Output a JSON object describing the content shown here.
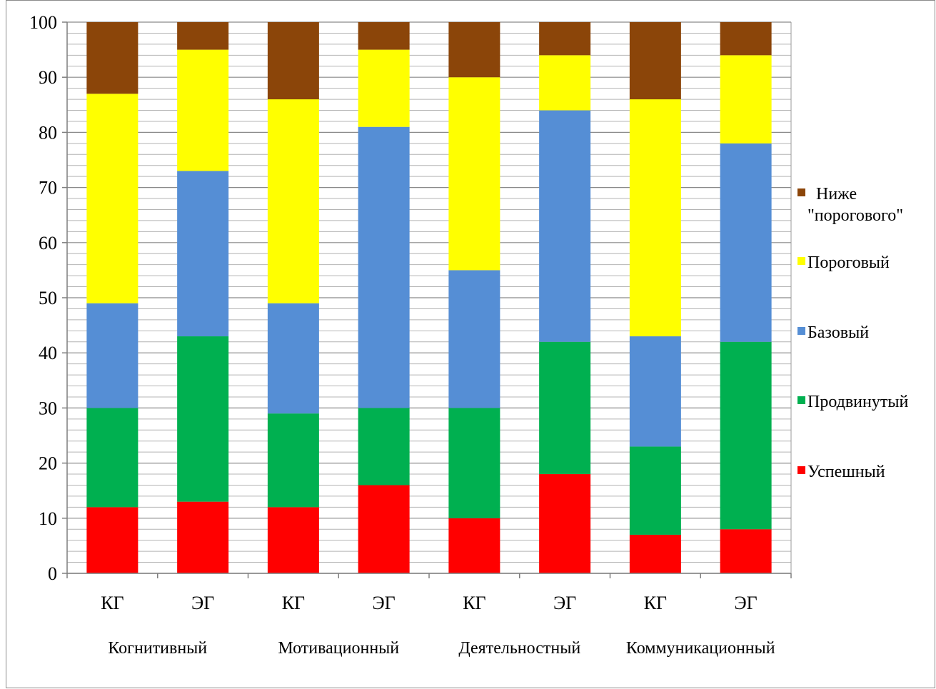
{
  "chart_data": {
    "type": "bar",
    "stacked": true,
    "categories": [
      "КГ",
      "ЭГ",
      "КГ",
      "ЭГ",
      "КГ",
      "ЭГ",
      "КГ",
      "ЭГ"
    ],
    "groups": [
      {
        "label": "Когнитивный",
        "categories": [
          0,
          1
        ]
      },
      {
        "label": "Мотивационный",
        "categories": [
          2,
          3
        ]
      },
      {
        "label": "Деятельностный",
        "categories": [
          4,
          5
        ]
      },
      {
        "label": "Коммуникационный",
        "categories": [
          6,
          7
        ]
      }
    ],
    "series": [
      {
        "name": "Успешный",
        "color": "#ff0000",
        "values": [
          12,
          13,
          12,
          16,
          10,
          18,
          7,
          8
        ]
      },
      {
        "name": "Продвинутый",
        "color": "#00b050",
        "values": [
          18,
          30,
          17,
          14,
          20,
          24,
          16,
          34
        ]
      },
      {
        "name": "Базовый",
        "color": "#558ed5",
        "values": [
          19,
          30,
          20,
          51,
          25,
          42,
          20,
          36
        ]
      },
      {
        "name": "Пороговый",
        "color": "#ffff00",
        "values": [
          38,
          22,
          37,
          14,
          35,
          10,
          43,
          16
        ]
      },
      {
        "name": "Ниже \"порогового\"",
        "color": "#8b4509",
        "values": [
          13,
          5,
          14,
          5,
          10,
          6,
          14,
          6
        ]
      }
    ],
    "legend_order": [
      4,
      3,
      2,
      1,
      0
    ],
    "legend_lines": [
      [
        "Ниже",
        "\"порогового\""
      ],
      [
        "Пороговый"
      ],
      [
        "Базовый"
      ],
      [
        "Продвинутый"
      ],
      [
        "Успешный"
      ]
    ],
    "yticks": [
      "0",
      "10",
      "20",
      "30",
      "40",
      "50",
      "60",
      "70",
      "80",
      "90",
      "100"
    ],
    "ylim": [
      0,
      100
    ],
    "minor_grid_step": 2,
    "grid": true,
    "legend_position": "right"
  }
}
